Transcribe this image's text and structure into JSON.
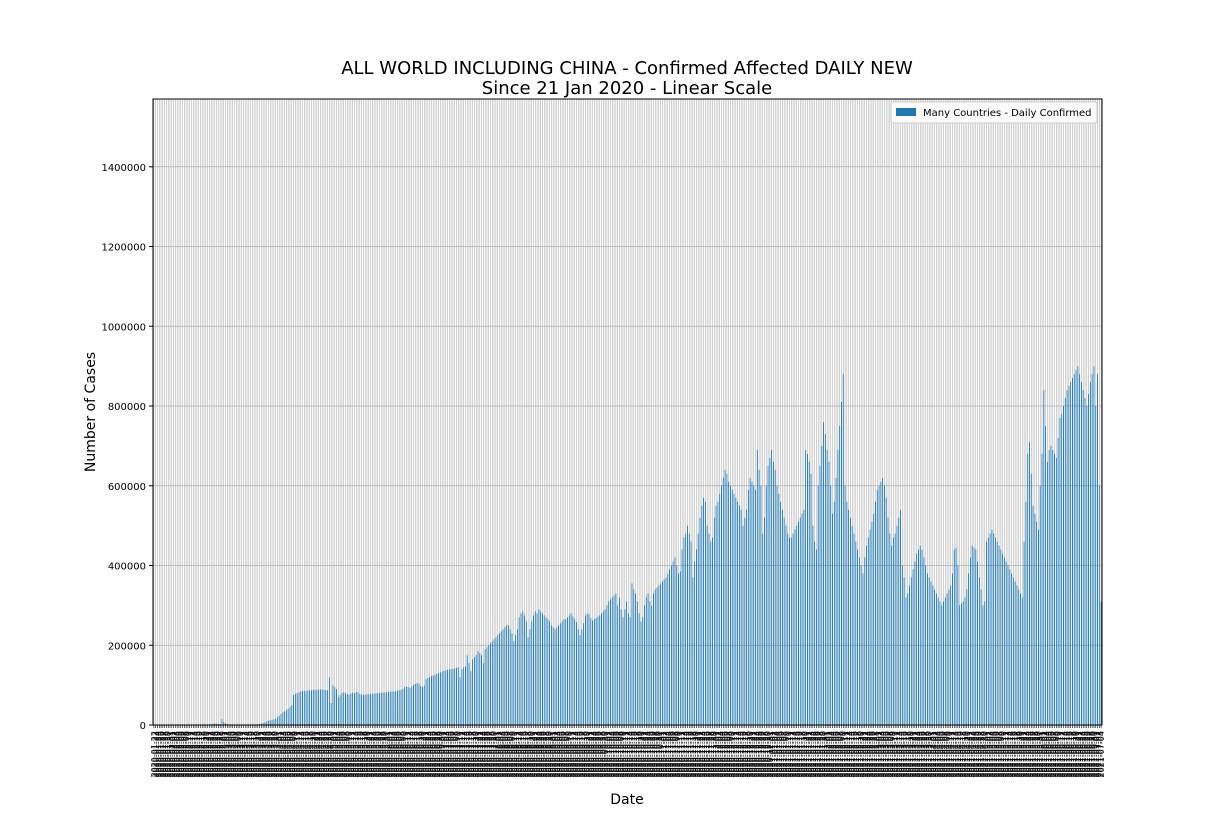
{
  "chart_data": {
    "type": "bar",
    "title": "ALL WORLD INCLUDING CHINA - Confirmed Affected DAILY NEW",
    "subtitle": "Since 21 Jan 2020 - Linear Scale",
    "xlabel": "Date",
    "ylabel": "Number of Cases",
    "ylim": [
      0,
      1570000
    ],
    "yticks": [
      0,
      200000,
      400000,
      600000,
      800000,
      1000000,
      1200000,
      1400000
    ],
    "grid": true,
    "legend_position": "top-right",
    "colors": {
      "bar": "#1f77b4",
      "grid": "#b0b0b0",
      "axis": "#000000"
    },
    "series": [
      {
        "name": "Many Countries - Daily Confirmed",
        "start_date": "2020-01-22",
        "values": [
          0,
          0,
          0,
          0,
          0,
          0,
          0,
          0,
          0,
          0,
          0,
          0,
          0,
          0,
          0,
          0,
          0,
          0,
          0,
          0,
          0,
          0,
          0,
          0,
          0,
          0,
          0,
          0,
          0,
          0,
          0,
          1500,
          2500,
          3000,
          3500,
          3000,
          2500,
          2000,
          15000,
          8000,
          4500,
          2500,
          1800,
          1200,
          1000,
          800,
          600,
          500,
          400,
          300,
          250,
          200,
          180,
          150,
          150,
          150,
          150,
          150,
          1500,
          2500,
          3500,
          5000,
          7000,
          9000,
          11000,
          12000,
          13000,
          14000,
          16000,
          19000,
          23000,
          28000,
          32000,
          34000,
          37000,
          40000,
          45000,
          50000,
          75000,
          78000,
          80000,
          82000,
          84000,
          85000,
          85000,
          86000,
          86000,
          87000,
          87000,
          88000,
          88000,
          88000,
          89000,
          89000,
          89000,
          88000,
          88000,
          87000,
          119000,
          55000,
          100000,
          95000,
          90000,
          70000,
          75000,
          80000,
          82000,
          80000,
          78000,
          76000,
          79000,
          81000,
          80000,
          83000,
          82000,
          78000,
          76000,
          76000,
          76000,
          77000,
          77000,
          78000,
          78000,
          79000,
          79000,
          80000,
          80000,
          81000,
          81000,
          82000,
          82000,
          83000,
          83000,
          84000,
          84000,
          85000,
          86000,
          87000,
          88000,
          90000,
          95000,
          96000,
          95000,
          93000,
          97000,
          100000,
          103000,
          105000,
          104000,
          98000,
          95000,
          99000,
          115000,
          118000,
          120000,
          122000,
          124000,
          126000,
          128000,
          130000,
          132000,
          134000,
          136000,
          137000,
          138000,
          139000,
          140000,
          141000,
          142000,
          143000,
          145000,
          120000,
          140000,
          145000,
          146000,
          175000,
          155000,
          135000,
          165000,
          170000,
          175000,
          185000,
          180000,
          175000,
          155000,
          190000,
          195000,
          200000,
          205000,
          210000,
          215000,
          220000,
          225000,
          230000,
          235000,
          240000,
          245000,
          250000,
          250000,
          240000,
          230000,
          210000,
          225000,
          240000,
          270000,
          280000,
          285000,
          275000,
          260000,
          220000,
          240000,
          260000,
          275000,
          285000,
          280000,
          290000,
          285000,
          280000,
          275000,
          270000,
          265000,
          260000,
          250000,
          245000,
          240000,
          245000,
          250000,
          255000,
          260000,
          265000,
          265000,
          270000,
          275000,
          280000,
          272000,
          265000,
          258000,
          240000,
          225000,
          240000,
          255000,
          275000,
          280000,
          278000,
          268000,
          262000,
          265000,
          268000,
          272000,
          275000,
          280000,
          285000,
          290000,
          300000,
          310000,
          315000,
          320000,
          325000,
          330000,
          300000,
          320000,
          290000,
          270000,
          290000,
          310000,
          280000,
          270000,
          355000,
          340000,
          330000,
          310000,
          280000,
          260000,
          270000,
          300000,
          320000,
          330000,
          310000,
          300000,
          330000,
          340000,
          345000,
          350000,
          355000,
          360000,
          365000,
          370000,
          380000,
          390000,
          400000,
          410000,
          420000,
          400000,
          380000,
          385000,
          440000,
          470000,
          480000,
          500000,
          480000,
          460000,
          370000,
          410000,
          440000,
          480000,
          520000,
          550000,
          570000,
          560000,
          500000,
          480000,
          460000,
          470000,
          520000,
          550000,
          560000,
          580000,
          600000,
          620000,
          640000,
          630000,
          610000,
          600000,
          590000,
          580000,
          570000,
          560000,
          550000,
          540000,
          500000,
          520000,
          540000,
          590000,
          620000,
          610000,
          600000,
          590000,
          690000,
          640000,
          600000,
          480000,
          520000,
          600000,
          650000,
          670000,
          690000,
          660000,
          640000,
          600000,
          580000,
          560000,
          540000,
          520000,
          500000,
          480000,
          470000,
          470000,
          480000,
          490000,
          500000,
          510000,
          520000,
          530000,
          540000,
          690000,
          680000,
          660000,
          630000,
          500000,
          460000,
          440000,
          600000,
          650000,
          700000,
          760000,
          730000,
          690000,
          660000,
          600000,
          530000,
          560000,
          620000,
          690000,
          750000,
          810000,
          880000,
          600000,
          560000,
          540000,
          520000,
          500000,
          480000,
          460000,
          440000,
          420000,
          400000,
          380000,
          420000,
          450000,
          470000,
          490000,
          510000,
          530000,
          560000,
          590000,
          600000,
          610000,
          620000,
          600000,
          570000,
          520000,
          480000,
          450000,
          470000,
          480000,
          500000,
          520000,
          540000,
          400000,
          370000,
          320000,
          330000,
          350000,
          370000,
          390000,
          410000,
          430000,
          440000,
          450000,
          440000,
          420000,
          400000,
          380000,
          370000,
          360000,
          350000,
          340000,
          330000,
          320000,
          310000,
          300000,
          310000,
          320000,
          330000,
          340000,
          350000,
          380000,
          440000,
          445000,
          400000,
          300000,
          305000,
          310000,
          320000,
          340000,
          380000,
          420000,
          450000,
          445000,
          440000,
          410000,
          370000,
          340000,
          300000,
          310000,
          460000,
          470000,
          480000,
          490000,
          480000,
          470000,
          460000,
          450000,
          440000,
          430000,
          420000,
          410000,
          400000,
          390000,
          380000,
          370000,
          360000,
          350000,
          340000,
          330000,
          320000,
          460000,
          560000,
          680000,
          710000,
          630000,
          550000,
          530000,
          510000,
          490000,
          600000,
          680000,
          840000,
          750000,
          660000,
          690000,
          700000,
          690000,
          680000,
          670000,
          720000,
          770000,
          780000,
          800000,
          820000,
          840000,
          850000,
          860000,
          870000,
          880000,
          890000,
          900000,
          880000,
          860000,
          840000,
          820000,
          800000,
          830000,
          860000,
          880000,
          900000,
          800000,
          880000,
          600000,
          310000
        ]
      }
    ],
    "xtick_label_format": "yyyy-mm-dd"
  }
}
